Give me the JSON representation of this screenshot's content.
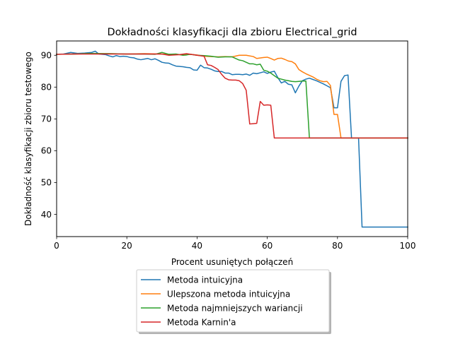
{
  "chart_data": {
    "type": "line",
    "title": "Dokładności klasyfikacji dla zbioru Electrical_grid",
    "xlabel": "Procent usuniętych połączeń",
    "ylabel": "Dokładność klasyfikacji zbioru testowego",
    "xlim": [
      0,
      100
    ],
    "ylim": [
      33,
      94.5
    ],
    "xticks": [
      0,
      20,
      40,
      60,
      80,
      100
    ],
    "yticks": [
      40,
      50,
      60,
      70,
      80,
      90
    ],
    "xtick_labels": [
      "0",
      "20",
      "40",
      "60",
      "80",
      "100"
    ],
    "ytick_labels": [
      "40",
      "50",
      "60",
      "70",
      "80",
      "90"
    ],
    "grid": false,
    "legend_position": "bottom-center",
    "series": [
      {
        "name": "Metoda intuicyjna",
        "color": "#1f77b4",
        "points": [
          [
            0,
            90.3
          ],
          [
            2,
            90.4
          ],
          [
            4,
            90.9
          ],
          [
            6,
            90.6
          ],
          [
            8,
            90.7
          ],
          [
            10,
            90.9
          ],
          [
            11,
            91.3
          ],
          [
            12,
            90.4
          ],
          [
            14,
            90.2
          ],
          [
            15,
            89.8
          ],
          [
            16,
            89.5
          ],
          [
            17,
            89.9
          ],
          [
            18,
            89.6
          ],
          [
            19,
            89.7
          ],
          [
            20,
            89.6
          ],
          [
            21,
            89.3
          ],
          [
            22,
            89.2
          ],
          [
            23,
            88.8
          ],
          [
            24,
            88.6
          ],
          [
            25,
            88.8
          ],
          [
            26,
            89.0
          ],
          [
            27,
            88.6
          ],
          [
            28,
            88.9
          ],
          [
            29,
            88.4
          ],
          [
            30,
            87.8
          ],
          [
            31,
            87.6
          ],
          [
            32,
            87.5
          ],
          [
            33,
            87.0
          ],
          [
            34,
            86.6
          ],
          [
            35,
            86.5
          ],
          [
            36,
            86.4
          ],
          [
            37,
            86.2
          ],
          [
            38,
            86.1
          ],
          [
            39,
            85.4
          ],
          [
            40,
            85.3
          ],
          [
            41,
            86.9
          ],
          [
            42,
            86.1
          ],
          [
            43,
            86.0
          ],
          [
            44,
            85.6
          ],
          [
            45,
            85.1
          ],
          [
            46,
            84.9
          ],
          [
            47,
            84.9
          ],
          [
            48,
            84.4
          ],
          [
            49,
            84.4
          ],
          [
            50,
            83.9
          ],
          [
            51,
            84.0
          ],
          [
            52,
            84.0
          ],
          [
            53,
            83.9
          ],
          [
            54,
            84.1
          ],
          [
            55,
            83.7
          ],
          [
            56,
            84.4
          ],
          [
            57,
            84.2
          ],
          [
            58,
            84.5
          ],
          [
            59,
            84.8
          ],
          [
            60,
            84.3
          ],
          [
            61,
            84.7
          ],
          [
            62,
            85.0
          ],
          [
            63,
            83.0
          ],
          [
            64,
            81.3
          ],
          [
            65,
            81.8
          ],
          [
            66,
            80.9
          ],
          [
            67,
            80.7
          ],
          [
            68,
            78.2
          ],
          [
            69,
            80.3
          ],
          [
            70,
            82.0
          ],
          [
            71,
            82.5
          ],
          [
            72,
            82.8
          ],
          [
            73,
            82.4
          ],
          [
            74,
            82.0
          ],
          [
            75,
            81.5
          ],
          [
            76,
            81.0
          ],
          [
            77,
            80.4
          ],
          [
            78,
            79.8
          ],
          [
            79,
            73.5
          ],
          [
            80,
            73.5
          ],
          [
            81,
            81.8
          ],
          [
            82,
            83.6
          ],
          [
            83,
            83.8
          ],
          [
            84,
            64.0
          ],
          [
            86,
            64.0
          ],
          [
            87,
            36.0
          ],
          [
            100,
            36.0
          ]
        ]
      },
      {
        "name": "Ulepszona metoda intuicyjna",
        "color": "#ff7f0e",
        "points": [
          [
            0,
            90.3
          ],
          [
            5,
            90.4
          ],
          [
            10,
            90.5
          ],
          [
            15,
            90.5
          ],
          [
            20,
            90.4
          ],
          [
            25,
            90.5
          ],
          [
            30,
            90.4
          ],
          [
            32,
            90.3
          ],
          [
            35,
            90.2
          ],
          [
            38,
            90.3
          ],
          [
            40,
            90.1
          ],
          [
            42,
            89.7
          ],
          [
            44,
            89.6
          ],
          [
            46,
            89.5
          ],
          [
            48,
            89.6
          ],
          [
            50,
            89.5
          ],
          [
            52,
            90.0
          ],
          [
            54,
            90.0
          ],
          [
            56,
            89.6
          ],
          [
            57,
            89.0
          ],
          [
            59,
            89.3
          ],
          [
            60,
            89.4
          ],
          [
            61,
            89.0
          ],
          [
            62,
            88.5
          ],
          [
            63,
            89.0
          ],
          [
            64,
            89.1
          ],
          [
            65,
            88.7
          ],
          [
            66,
            88.2
          ],
          [
            67,
            88.0
          ],
          [
            68,
            87.3
          ],
          [
            69,
            85.5
          ],
          [
            70,
            84.8
          ],
          [
            71,
            84.2
          ],
          [
            72,
            83.7
          ],
          [
            73,
            83.2
          ],
          [
            74,
            82.5
          ],
          [
            75,
            82.0
          ],
          [
            76,
            81.7
          ],
          [
            77,
            81.8
          ],
          [
            78,
            80.5
          ],
          [
            79,
            71.4
          ],
          [
            80,
            71.4
          ],
          [
            81,
            64.0
          ],
          [
            100,
            64.0
          ]
        ]
      },
      {
        "name": "Metoda najmniejszych wariancji",
        "color": "#2ca02c",
        "points": [
          [
            0,
            90.3
          ],
          [
            5,
            90.4
          ],
          [
            10,
            90.6
          ],
          [
            15,
            90.5
          ],
          [
            20,
            90.4
          ],
          [
            25,
            90.4
          ],
          [
            28,
            90.3
          ],
          [
            30,
            90.9
          ],
          [
            31,
            90.6
          ],
          [
            32,
            90.3
          ],
          [
            34,
            90.4
          ],
          [
            36,
            90.0
          ],
          [
            37,
            90.1
          ],
          [
            38,
            90.3
          ],
          [
            40,
            90.0
          ],
          [
            42,
            89.9
          ],
          [
            44,
            89.7
          ],
          [
            46,
            89.4
          ],
          [
            48,
            89.5
          ],
          [
            50,
            89.5
          ],
          [
            51,
            89.0
          ],
          [
            52,
            88.5
          ],
          [
            53,
            88.3
          ],
          [
            54,
            87.8
          ],
          [
            55,
            87.3
          ],
          [
            56,
            87.3
          ],
          [
            57,
            87.0
          ],
          [
            58,
            87.2
          ],
          [
            59,
            85.3
          ],
          [
            60,
            85.0
          ],
          [
            61,
            84.4
          ],
          [
            62,
            83.6
          ],
          [
            63,
            82.8
          ],
          [
            64,
            82.5
          ],
          [
            65,
            82.2
          ],
          [
            66,
            82.0
          ],
          [
            67,
            81.8
          ],
          [
            68,
            81.7
          ],
          [
            69,
            81.8
          ],
          [
            70,
            81.9
          ],
          [
            71,
            81.9
          ],
          [
            72,
            64.0
          ],
          [
            100,
            64.0
          ]
        ]
      },
      {
        "name": "Metoda Karnin'a",
        "color": "#d62728",
        "points": [
          [
            0,
            90.3
          ],
          [
            5,
            90.4
          ],
          [
            10,
            90.4
          ],
          [
            15,
            90.4
          ],
          [
            20,
            90.4
          ],
          [
            25,
            90.4
          ],
          [
            30,
            90.4
          ],
          [
            32,
            90.0
          ],
          [
            35,
            90.2
          ],
          [
            37,
            90.5
          ],
          [
            40,
            90.0
          ],
          [
            42,
            89.7
          ],
          [
            43,
            87.0
          ],
          [
            44,
            86.8
          ],
          [
            45,
            86.2
          ],
          [
            46,
            85.5
          ],
          [
            47,
            84.0
          ],
          [
            48,
            82.8
          ],
          [
            49,
            82.3
          ],
          [
            50,
            82.2
          ],
          [
            51,
            82.2
          ],
          [
            52,
            82.0
          ],
          [
            53,
            81.1
          ],
          [
            54,
            79.0
          ],
          [
            55,
            68.4
          ],
          [
            56,
            68.5
          ],
          [
            57,
            68.6
          ],
          [
            58,
            75.5
          ],
          [
            59,
            74.3
          ],
          [
            60,
            74.4
          ],
          [
            61,
            74.3
          ],
          [
            62,
            64.0
          ],
          [
            100,
            64.0
          ]
        ]
      }
    ]
  }
}
